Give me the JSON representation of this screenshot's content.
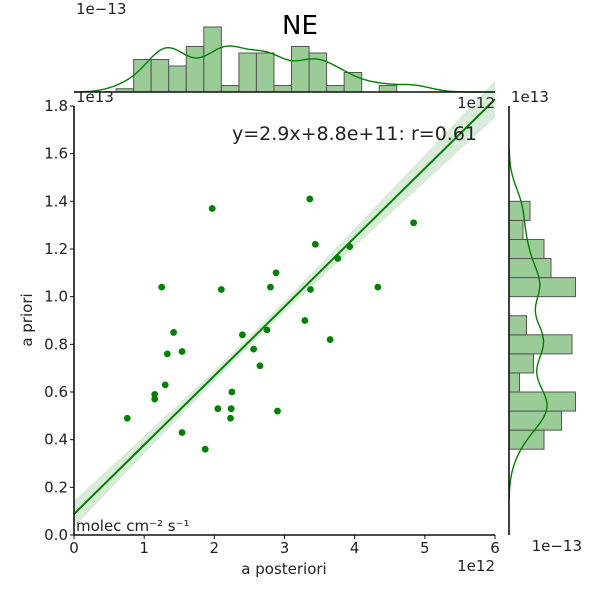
{
  "title": "NE",
  "annotation": "y=2.9x+8.8e+11: r=0.61",
  "units_label": "molec cm⁻² s⁻¹",
  "offsets": {
    "top_hist": "1e−13",
    "main_x": "1e12",
    "main_y": "1e13",
    "right_hist_top": "1e13",
    "right_hist_bottom": "1e−13"
  },
  "chart_data": [
    {
      "type": "scatter",
      "xlabel": "a posteriori",
      "ylabel": "a priori",
      "xlim": [
        0,
        6
      ],
      "ylim": [
        0,
        1.8
      ],
      "x_scale": "1e12",
      "y_scale": "1e13",
      "xticks": [
        "0",
        "1",
        "2",
        "3",
        "4",
        "5",
        "6"
      ],
      "yticks": [
        "0.0",
        "0.2",
        "0.4",
        "0.6",
        "0.8",
        "1.0",
        "1.2",
        "1.4",
        "1.6",
        "1.8"
      ],
      "points": [
        [
          0.76,
          0.49
        ],
        [
          1.15,
          0.57
        ],
        [
          1.15,
          0.59
        ],
        [
          1.25,
          1.04
        ],
        [
          1.3,
          0.63
        ],
        [
          1.33,
          0.76
        ],
        [
          1.42,
          0.85
        ],
        [
          1.54,
          0.43
        ],
        [
          1.54,
          0.77
        ],
        [
          1.87,
          0.36
        ],
        [
          1.97,
          1.37
        ],
        [
          2.05,
          0.53
        ],
        [
          2.1,
          1.03
        ],
        [
          2.23,
          0.49
        ],
        [
          2.24,
          0.53
        ],
        [
          2.25,
          0.6
        ],
        [
          2.4,
          0.84
        ],
        [
          2.56,
          0.78
        ],
        [
          2.65,
          0.71
        ],
        [
          2.75,
          0.86
        ],
        [
          2.8,
          1.04
        ],
        [
          2.88,
          1.1
        ],
        [
          2.9,
          0.52
        ],
        [
          3.29,
          0.9
        ],
        [
          3.36,
          1.41
        ],
        [
          3.37,
          1.03
        ],
        [
          3.44,
          1.22
        ],
        [
          3.65,
          0.82
        ],
        [
          3.76,
          1.16
        ],
        [
          3.93,
          1.21
        ],
        [
          4.33,
          1.04
        ],
        [
          4.84,
          1.31
        ]
      ],
      "regression": {
        "slope": 2.9,
        "intercept": 0.88,
        "x_range": [
          0,
          6
        ]
      },
      "color": "#008000",
      "grid": false
    },
    {
      "type": "bar",
      "orientation": "vertical",
      "x_range": [
        0.6,
        5.0
      ],
      "bin_width": 0.25,
      "values": [
        0.1,
        1.0,
        1.0,
        0.8,
        1.4,
        2.0,
        0.2,
        1.2,
        1.2,
        0.2,
        1.4,
        1.2,
        0.2,
        0.6,
        0,
        0.2
      ],
      "kde_axis_max": 2.0,
      "kde_bandwidth": 0.25,
      "color": "#9bcc98",
      "line_color": "#008000"
    },
    {
      "type": "bar",
      "orientation": "horizontal",
      "y_range": [
        0.36,
        1.41
      ],
      "bin_width": 0.08,
      "values": [
        1.0,
        1.5,
        1.9,
        0.3,
        0.7,
        1.8,
        0.5,
        0,
        1.9,
        1.2,
        1.0,
        0.4,
        0.6
      ],
      "kde_axis_max": 2.0,
      "kde_bandwidth": 0.08,
      "color": "#9bcc98",
      "line_color": "#008000"
    }
  ]
}
